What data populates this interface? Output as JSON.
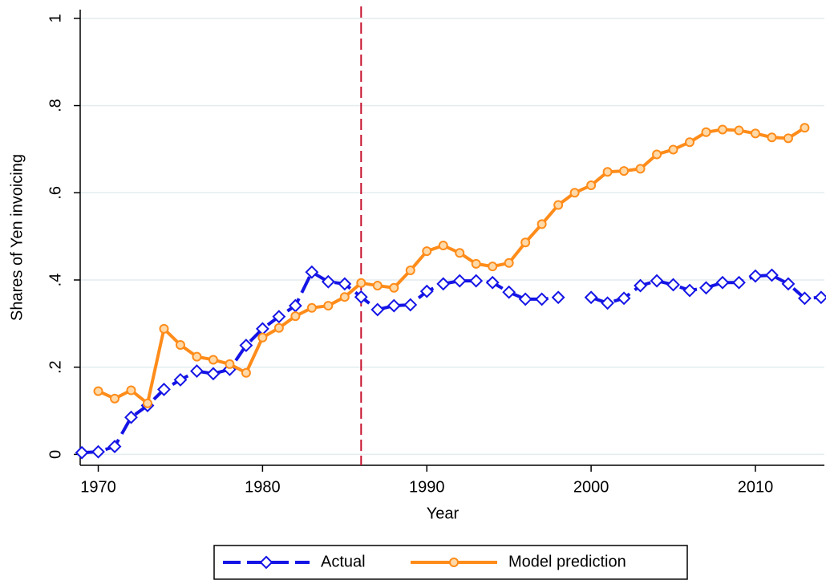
{
  "chart_data": {
    "type": "line",
    "x_label": "Year",
    "y_label": "Shares of Yen invoicing",
    "x": [
      1969,
      1970,
      1971,
      1972,
      1973,
      1974,
      1975,
      1976,
      1977,
      1978,
      1979,
      1980,
      1981,
      1982,
      1983,
      1984,
      1985,
      1986,
      1987,
      1988,
      1989,
      1990,
      1991,
      1992,
      1993,
      1994,
      1995,
      1996,
      1997,
      1998,
      1999,
      2000,
      2001,
      2002,
      2003,
      2004,
      2005,
      2006,
      2007,
      2008,
      2009,
      2010,
      2011,
      2012,
      2013,
      2014
    ],
    "series": [
      {
        "name": "Actual",
        "color": "#1414e6",
        "dashed": true,
        "marker": "diamond",
        "values": [
          0.004,
          0.006,
          0.018,
          0.085,
          0.112,
          0.149,
          0.171,
          0.191,
          0.185,
          0.195,
          0.25,
          0.288,
          0.316,
          0.341,
          0.418,
          0.396,
          0.391,
          0.361,
          0.332,
          0.341,
          0.343,
          0.374,
          0.391,
          0.398,
          0.398,
          0.394,
          0.372,
          0.356,
          0.356,
          0.36,
          null,
          0.36,
          0.347,
          0.358,
          0.387,
          0.398,
          0.389,
          0.376,
          0.382,
          0.394,
          0.394,
          0.409,
          0.411,
          0.391,
          0.358,
          0.36
        ]
      },
      {
        "name": "Model prediction",
        "color": "#ff8c1a",
        "dashed": false,
        "marker": "circle",
        "values": [
          null,
          0.145,
          0.128,
          0.147,
          0.117,
          0.288,
          0.251,
          0.224,
          0.217,
          0.207,
          0.187,
          0.268,
          0.29,
          0.317,
          0.336,
          0.341,
          0.361,
          0.393,
          0.387,
          0.382,
          0.422,
          0.466,
          0.479,
          0.462,
          0.437,
          0.431,
          0.439,
          0.486,
          0.528,
          0.572,
          0.6,
          0.617,
          0.648,
          0.65,
          0.655,
          0.688,
          0.699,
          0.716,
          0.739,
          0.745,
          0.743,
          0.736,
          0.727,
          0.725,
          0.749,
          null
        ]
      }
    ],
    "xlim": [
      1968.9,
      2014.2
    ],
    "xticks": [
      1970,
      1980,
      1990,
      2000,
      2010
    ],
    "ylim": [
      -0.025,
      1.02
    ],
    "yticks": [
      0,
      {
        "value": 0.2,
        "label": ".2"
      },
      {
        "value": 0.4,
        "label": ".4"
      },
      {
        "value": 0.6,
        "label": ".6"
      },
      {
        "value": 0.8,
        "label": ".8"
      },
      1
    ],
    "grid": true,
    "vline": {
      "x": 1986,
      "color": "#c8102e"
    },
    "legend": "bottom"
  }
}
